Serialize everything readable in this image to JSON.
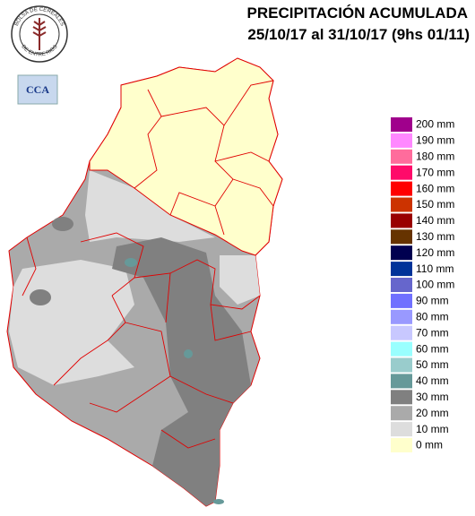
{
  "header": {
    "title": "PRECIPITACIÓN ACUMULADA",
    "subtitle": "25/10/17 al 31/10/17 (9hs 01/11)"
  },
  "logos": {
    "bolsa_top": "BOLSA DE CEREALES",
    "bolsa_bottom": "DE ENTRE RIOS",
    "cca": "CCA"
  },
  "legend": {
    "items": [
      {
        "label": "200 mm",
        "color": "#a0008c"
      },
      {
        "label": "190 mm",
        "color": "#ff88ff"
      },
      {
        "label": "180 mm",
        "color": "#ff6c9c"
      },
      {
        "label": "170 mm",
        "color": "#ff0a6a"
      },
      {
        "label": "160 mm",
        "color": "#ff0000"
      },
      {
        "label": "150 mm",
        "color": "#cc3300"
      },
      {
        "label": "140 mm",
        "color": "#990000"
      },
      {
        "label": "130 mm",
        "color": "#663300"
      },
      {
        "label": "120 mm",
        "color": "#000050"
      },
      {
        "label": "110 mm",
        "color": "#003399"
      },
      {
        "label": "100 mm",
        "color": "#6666cc"
      },
      {
        "label": "90 mm",
        "color": "#7070ff"
      },
      {
        "label": "80 mm",
        "color": "#9999ff"
      },
      {
        "label": "70 mm",
        "color": "#c8c8ff"
      },
      {
        "label": "60 mm",
        "color": "#99ffff"
      },
      {
        "label": "50 mm",
        "color": "#99cccc"
      },
      {
        "label": "40 mm",
        "color": "#669999"
      },
      {
        "label": "30 mm",
        "color": "#808080"
      },
      {
        "label": "20 mm",
        "color": "#aaaaaa"
      },
      {
        "label": "10 mm",
        "color": "#dddddd"
      },
      {
        "label": "0 mm",
        "color": "#ffffcc"
      }
    ]
  }
}
